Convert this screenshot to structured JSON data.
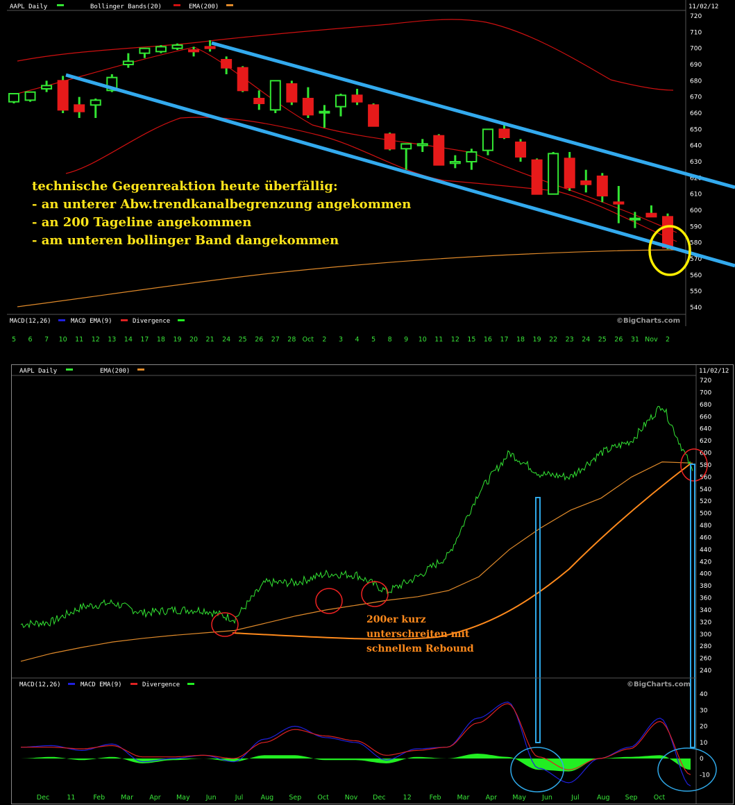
{
  "colors": {
    "bg": "#000000",
    "candle_up": "#33e633",
    "candle_down": "#e61a1a",
    "bollinger": "#d01010",
    "ema": "#e08a2a",
    "channel": "#33aaee",
    "highlight_yellow": "#ffee00",
    "circle_red": "#ee2222",
    "circle_blue": "#2fa8e8",
    "macd": "#2020dd",
    "macd_signal": "#dd2222",
    "divergence": "#22ee22",
    "annot_orange": "#ff8a1c"
  },
  "top": {
    "header": {
      "title": "AAPL Daily",
      "bollinger": "Bollinger Bands(20)",
      "ema": "EMA(200)",
      "date": "11/02/12"
    },
    "macd_header": {
      "macd": "MACD(12,26)",
      "macd_ema": "MACD EMA(9)",
      "divergence": "Divergence"
    },
    "watermark": "©BigCharts.com",
    "annotation": [
      "technische Gegenreaktion heute überfällig:",
      "- an unterer Abw.trendkanalbegrenzung angekommen",
      "- an 200 Tageline angekommen",
      "- am unteren bollinger Band dangekommen"
    ],
    "x_ticks": [
      "5",
      "6",
      "7",
      "10",
      "11",
      "12",
      "13",
      "14",
      "17",
      "18",
      "19",
      "20",
      "21",
      "24",
      "25",
      "26",
      "27",
      "28",
      "Oct",
      "2",
      "3",
      "4",
      "5",
      "8",
      "9",
      "10",
      "11",
      "12",
      "15",
      "16",
      "17",
      "18",
      "19",
      "22",
      "23",
      "24",
      "25",
      "26",
      "31",
      "Nov",
      "2"
    ]
  },
  "bottom": {
    "header": {
      "title": "AAPL Daily",
      "ema": "EMA(200)",
      "date": "11/02/12"
    },
    "macd_header": {
      "macd": "MACD(12,26)",
      "macd_ema": "MACD EMA(9)",
      "divergence": "Divergence"
    },
    "watermark": "©BigCharts.com",
    "annotation": [
      "200er kurz",
      "unterschreiten mit",
      "schnellem Rebound"
    ],
    "x_ticks": [
      "Dec",
      "11",
      "Feb",
      "Mar",
      "Apr",
      "May",
      "Jun",
      "Jul",
      "Aug",
      "Sep",
      "Oct",
      "Nov",
      "Dec",
      "12",
      "Feb",
      "Mar",
      "Apr",
      "May",
      "Jun",
      "Jul",
      "Aug",
      "Sep",
      "Oct"
    ]
  },
  "chart_data": [
    {
      "type": "candlestick",
      "title": "AAPL Daily",
      "ylim": [
        540,
        720
      ],
      "y_ticks": [
        540,
        550,
        560,
        570,
        580,
        590,
        600,
        610,
        620,
        630,
        640,
        650,
        660,
        670,
        680,
        690,
        700,
        710,
        720
      ],
      "candles": [
        {
          "x": "5",
          "o": 667,
          "h": 671,
          "l": 666,
          "c": 672
        },
        {
          "x": "6",
          "o": 668,
          "h": 673,
          "l": 667,
          "c": 673
        },
        {
          "x": "7",
          "o": 675,
          "h": 680,
          "l": 673,
          "c": 677
        },
        {
          "x": "10",
          "o": 680,
          "h": 683,
          "l": 660,
          "c": 662
        },
        {
          "x": "11",
          "o": 665,
          "h": 670,
          "l": 657,
          "c": 661
        },
        {
          "x": "12",
          "o": 665,
          "h": 669,
          "l": 657,
          "c": 668
        },
        {
          "x": "13",
          "o": 674,
          "h": 684,
          "l": 673,
          "c": 682
        },
        {
          "x": "14",
          "o": 690,
          "h": 697,
          "l": 688,
          "c": 692
        },
        {
          "x": "17",
          "o": 697,
          "h": 700,
          "l": 694,
          "c": 700
        },
        {
          "x": "18",
          "o": 698,
          "h": 702,
          "l": 697,
          "c": 701
        },
        {
          "x": "19",
          "o": 700,
          "h": 703,
          "l": 699,
          "c": 702
        },
        {
          "x": "20",
          "o": 699,
          "h": 701,
          "l": 695,
          "c": 698
        },
        {
          "x": "21",
          "o": 701,
          "h": 705,
          "l": 698,
          "c": 700
        },
        {
          "x": "24",
          "o": 693,
          "h": 695,
          "l": 684,
          "c": 688
        },
        {
          "x": "25",
          "o": 688,
          "h": 689,
          "l": 673,
          "c": 674
        },
        {
          "x": "26",
          "o": 669,
          "h": 674,
          "l": 662,
          "c": 666
        },
        {
          "x": "27",
          "o": 662,
          "h": 680,
          "l": 660,
          "c": 680
        },
        {
          "x": "28",
          "o": 678,
          "h": 680,
          "l": 665,
          "c": 667
        },
        {
          "x": "Oct",
          "o": 669,
          "h": 676,
          "l": 657,
          "c": 659
        },
        {
          "x": "2",
          "o": 661,
          "h": 665,
          "l": 651,
          "c": 661
        },
        {
          "x": "3",
          "o": 664,
          "h": 672,
          "l": 658,
          "c": 671
        },
        {
          "x": "4",
          "o": 671,
          "h": 675,
          "l": 665,
          "c": 667
        },
        {
          "x": "5",
          "o": 665,
          "h": 666,
          "l": 652,
          "c": 652
        },
        {
          "x": "8",
          "o": 647,
          "h": 648,
          "l": 637,
          "c": 638
        },
        {
          "x": "9",
          "o": 638,
          "h": 641,
          "l": 625,
          "c": 641
        },
        {
          "x": "10",
          "o": 640,
          "h": 644,
          "l": 636,
          "c": 641
        },
        {
          "x": "11",
          "o": 646,
          "h": 647,
          "l": 628,
          "c": 628
        },
        {
          "x": "12",
          "o": 629,
          "h": 634,
          "l": 626,
          "c": 630
        },
        {
          "x": "15",
          "o": 630,
          "h": 638,
          "l": 625,
          "c": 636
        },
        {
          "x": "16",
          "o": 637,
          "h": 650,
          "l": 634,
          "c": 650
        },
        {
          "x": "17",
          "o": 650,
          "h": 653,
          "l": 644,
          "c": 645
        },
        {
          "x": "18",
          "o": 642,
          "h": 644,
          "l": 630,
          "c": 633
        },
        {
          "x": "19",
          "o": 631,
          "h": 632,
          "l": 610,
          "c": 610
        },
        {
          "x": "22",
          "o": 610,
          "h": 636,
          "l": 610,
          "c": 635
        },
        {
          "x": "23",
          "o": 632,
          "h": 636,
          "l": 612,
          "c": 614
        },
        {
          "x": "24",
          "o": 618,
          "h": 625,
          "l": 611,
          "c": 616
        },
        {
          "x": "25",
          "o": 621,
          "h": 623,
          "l": 605,
          "c": 609
        },
        {
          "x": "26",
          "o": 605,
          "h": 615,
          "l": 592,
          "c": 604
        },
        {
          "x": "31",
          "o": 595,
          "h": 599,
          "l": 589,
          "c": 595
        },
        {
          "x": "Nov",
          "o": 598,
          "h": 603,
          "l": 596,
          "c": 596
        },
        {
          "x": "2",
          "o": 596,
          "h": 598,
          "l": 576,
          "c": 577
        }
      ]
    },
    {
      "type": "line",
      "title": "AAPL Daily",
      "ylim": [
        240,
        720
      ],
      "y_ticks": [
        240,
        260,
        280,
        300,
        320,
        340,
        360,
        380,
        400,
        420,
        440,
        460,
        480,
        500,
        520,
        540,
        560,
        580,
        600,
        620,
        640,
        660,
        680,
        700,
        720
      ],
      "categories": [
        "Dec",
        "11",
        "Feb",
        "Mar",
        "Apr",
        "May",
        "Jun",
        "Jul",
        "Aug",
        "Sep",
        "Oct",
        "Nov",
        "Dec",
        "12",
        "Feb",
        "Mar",
        "Apr",
        "May",
        "Jun",
        "Jul",
        "Aug",
        "Sep",
        "Oct"
      ],
      "series": [
        {
          "name": "AAPL Daily",
          "values": [
            316,
            320,
            345,
            352,
            335,
            340,
            340,
            325,
            385,
            385,
            400,
            398,
            370,
            395,
            430,
            535,
            600,
            565,
            560,
            600,
            620,
            680,
            570
          ]
        },
        {
          "name": "EMA(200)",
          "values": [
            255,
            268,
            278,
            287,
            293,
            298,
            302,
            306,
            318,
            330,
            340,
            348,
            356,
            362,
            372,
            395,
            440,
            475,
            505,
            525,
            560,
            585,
            583
          ]
        }
      ]
    },
    {
      "type": "line",
      "title": "MACD(12,26)",
      "ylim": [
        -20,
        40
      ],
      "y_ticks": [
        -10,
        0,
        10,
        20,
        30,
        40
      ],
      "categories": [
        "Dec",
        "11",
        "Feb",
        "Mar",
        "Apr",
        "May",
        "Jun",
        "Jul",
        "Aug",
        "Sep",
        "Oct",
        "Nov",
        "Dec",
        "12",
        "Feb",
        "Mar",
        "Apr",
        "May",
        "Jun",
        "Jul",
        "Aug",
        "Sep",
        "Oct"
      ],
      "series": [
        {
          "name": "MACD(12,26)",
          "values": [
            7,
            8,
            5,
            9,
            -2,
            0,
            2,
            -2,
            12,
            20,
            13,
            10,
            -1,
            6,
            7,
            25,
            35,
            -6,
            -15,
            0,
            7,
            25,
            -17
          ]
        },
        {
          "name": "MACD EMA(9)",
          "values": [
            7,
            7,
            6,
            8,
            1,
            1,
            2,
            0,
            10,
            18,
            14,
            11,
            2,
            5,
            7,
            22,
            34,
            1,
            -7,
            0,
            6,
            23,
            -10
          ]
        },
        {
          "name": "Divergence",
          "values": [
            0,
            1,
            -1,
            1,
            -3,
            -1,
            0,
            -2,
            2,
            2,
            -1,
            -1,
            -3,
            1,
            0,
            3,
            1,
            -7,
            -8,
            0,
            1,
            2,
            -7
          ]
        }
      ]
    }
  ]
}
